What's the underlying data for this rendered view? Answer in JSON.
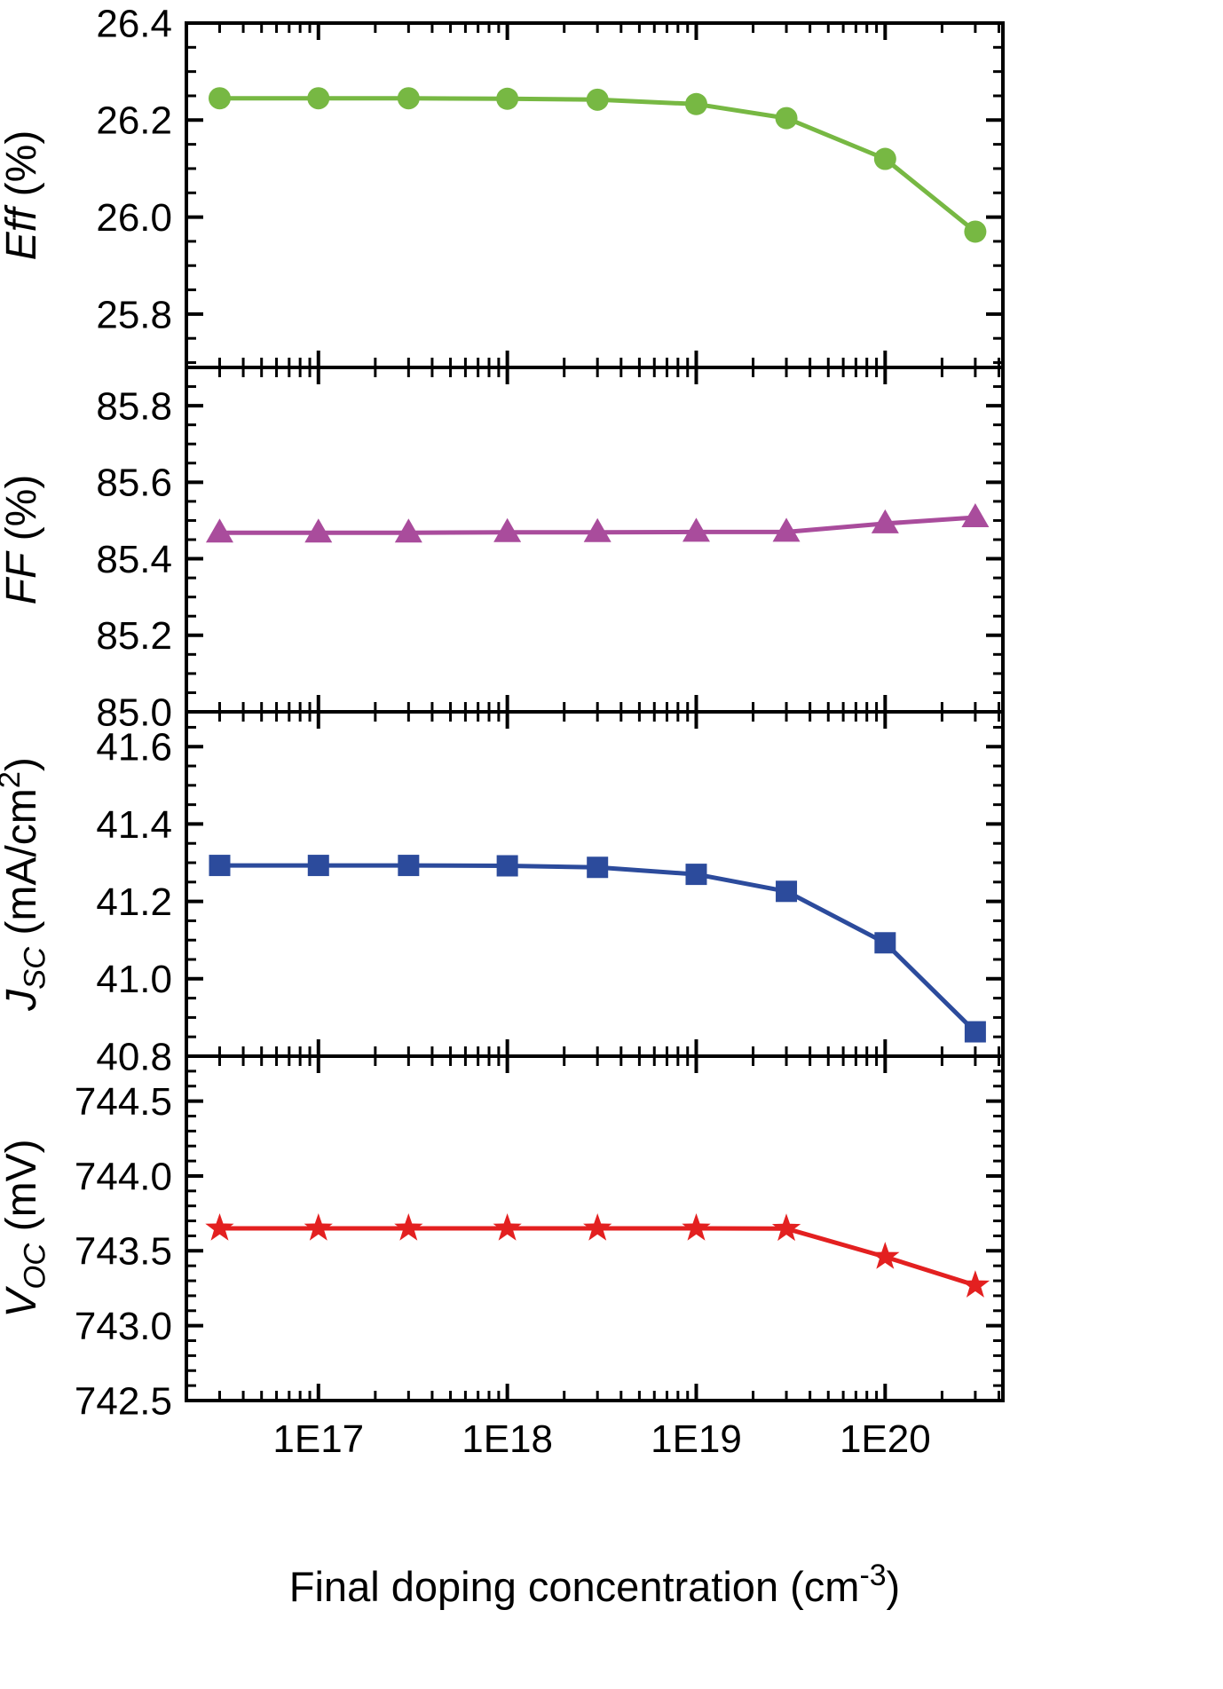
{
  "figure": {
    "background": "#ffffff",
    "frame_color": "#000000",
    "text_color": "#000000",
    "grid": "off",
    "legend": "none"
  },
  "chart_data": {
    "type": "line",
    "layout": "4 vertically stacked panels sharing a logarithmic x-axis",
    "x_axis": {
      "scale": "log",
      "label_segments": [
        {
          "text": "Final doping concentration (cm"
        },
        {
          "text": "-3",
          "sup": true
        },
        {
          "text": ")"
        }
      ],
      "ticks": [
        1e+17,
        1e+18,
        1e+19,
        1e+20
      ],
      "tick_labels": [
        "1E17",
        "1E18",
        "1E19",
        "1E20"
      ],
      "xlim": [
        2e+16,
        4.2e+20
      ]
    },
    "x_values": [
      3e+16,
      1e+17,
      3e+17,
      1e+18,
      3e+18,
      1e+19,
      3e+19,
      1e+20,
      3e+20
    ],
    "panels": [
      {
        "name": "efficiency",
        "ylabel_segments": [
          {
            "text": "Eff",
            "italic": true
          },
          {
            "text": " (%)"
          }
        ],
        "color": "#77B843",
        "marker": "circle",
        "ylim": [
          25.69,
          26.4
        ],
        "yticks": [
          25.8,
          26.0,
          26.2,
          26.4
        ],
        "ytick_labels": [
          "25.8",
          "26.0",
          "26.2",
          "26.4"
        ],
        "minor_step": 0.05,
        "values": [
          26.245,
          26.245,
          26.245,
          26.244,
          26.242,
          26.233,
          26.204,
          26.12,
          25.97
        ]
      },
      {
        "name": "fill-factor",
        "ylabel_segments": [
          {
            "text": "FF",
            "italic": true
          },
          {
            "text": " (%)"
          }
        ],
        "color": "#A94C9C",
        "marker": "triangle",
        "ylim": [
          85.0,
          85.9
        ],
        "yticks": [
          85.0,
          85.2,
          85.4,
          85.6,
          85.8
        ],
        "ytick_labels": [
          "85.0",
          "85.2",
          "85.4",
          "85.6",
          "85.8"
        ],
        "minor_step": 0.05,
        "values": [
          85.468,
          85.468,
          85.468,
          85.469,
          85.469,
          85.47,
          85.47,
          85.492,
          85.508
        ]
      },
      {
        "name": "short-circuit-current",
        "ylabel_segments": [
          {
            "text": "J",
            "italic": true
          },
          {
            "text": "SC",
            "italic": true,
            "sub": true
          },
          {
            "text": " (mA/cm"
          },
          {
            "text": "2",
            "sup": true
          },
          {
            "text": ")"
          }
        ],
        "color": "#2C4B9C",
        "marker": "square",
        "ylim": [
          40.8,
          41.69
        ],
        "yticks": [
          40.8,
          41.0,
          41.2,
          41.4,
          41.6
        ],
        "ytick_labels": [
          "40.8",
          "41.0",
          "41.2",
          "41.4",
          "41.6"
        ],
        "minor_step": 0.05,
        "values": [
          41.293,
          41.293,
          41.293,
          41.292,
          41.288,
          41.27,
          41.226,
          41.093,
          40.863
        ]
      },
      {
        "name": "open-circuit-voltage",
        "ylabel_segments": [
          {
            "text": "V",
            "italic": true
          },
          {
            "text": "OC",
            "italic": true,
            "sub": true
          },
          {
            "text": " (mV)"
          }
        ],
        "color": "#E32020",
        "marker": "star",
        "ylim": [
          742.5,
          744.8
        ],
        "yticks": [
          742.5,
          743.0,
          743.5,
          744.0,
          744.5
        ],
        "ytick_labels": [
          "742.5",
          "743.0",
          "743.5",
          "744.0",
          "744.5"
        ],
        "minor_step": 0.1,
        "values": [
          743.65,
          743.65,
          743.65,
          743.65,
          743.65,
          743.65,
          743.648,
          743.46,
          743.27
        ]
      }
    ]
  }
}
